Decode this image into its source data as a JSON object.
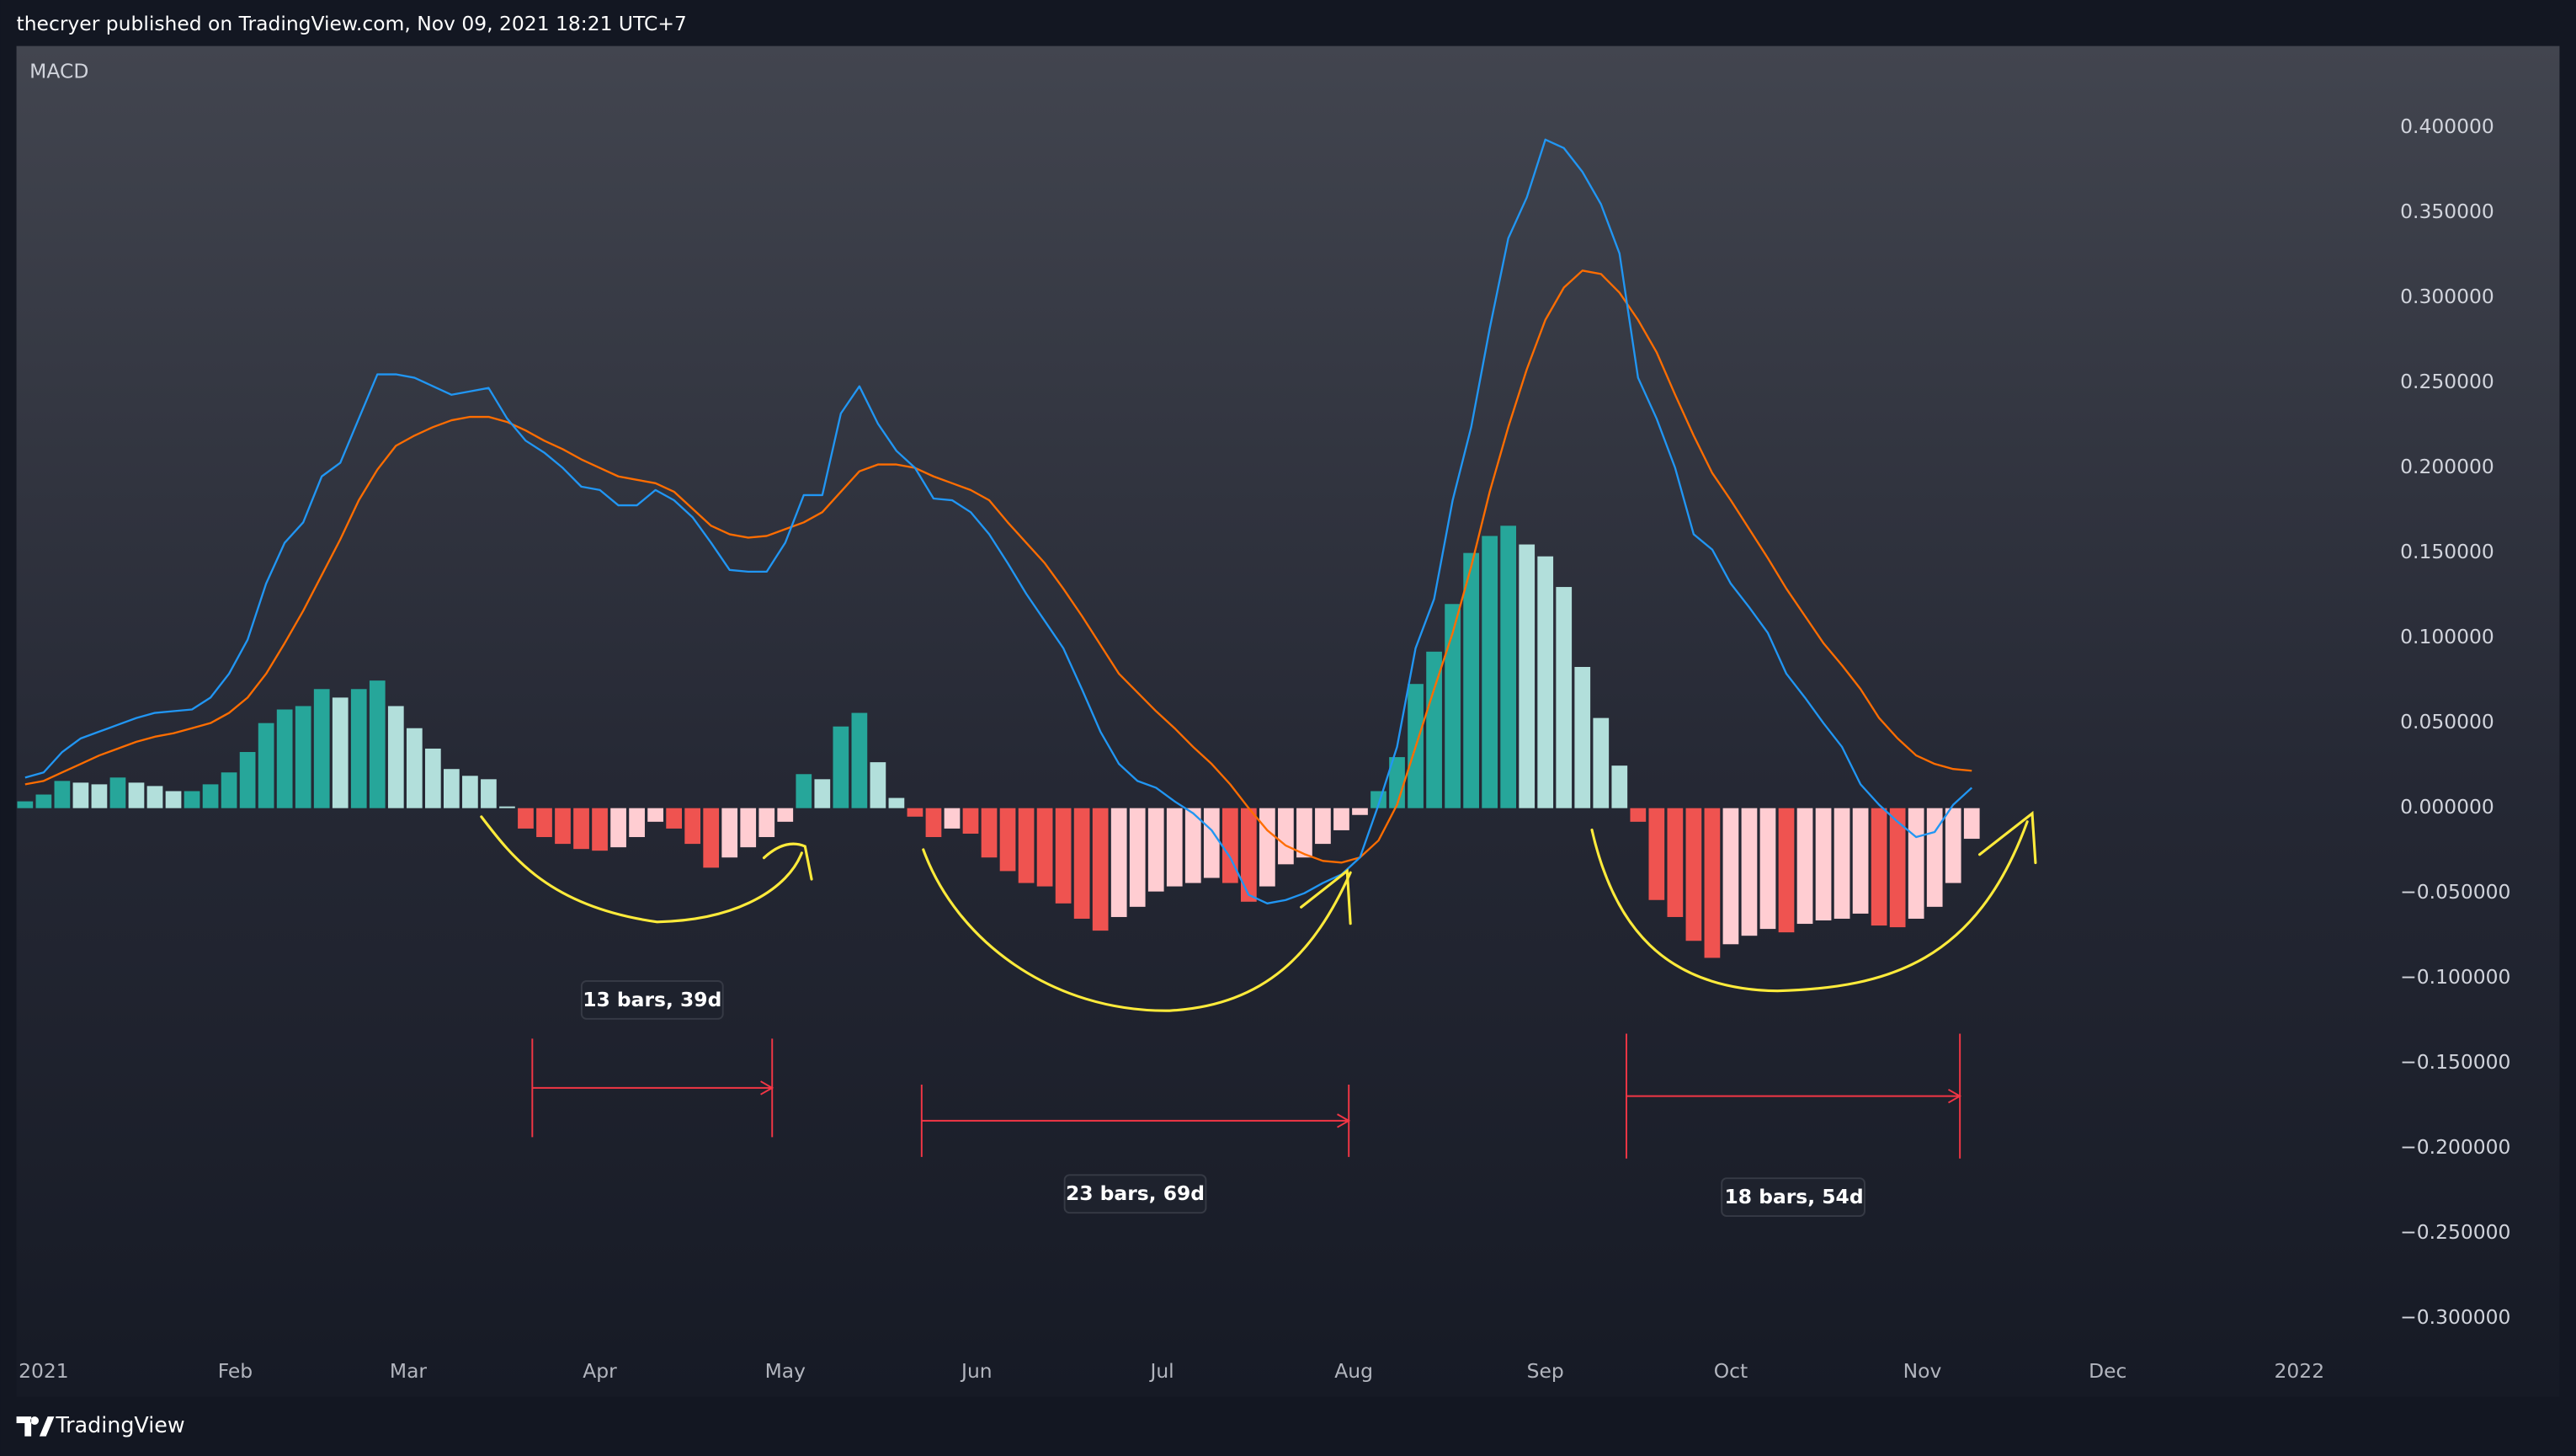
{
  "header": "thecryer published on TradingView.com, Nov 09, 2021 18:21 UTC+7",
  "footer": "TradingView",
  "chart_data": {
    "type": "macd",
    "title": "MACD",
    "annotations": [
      "13 bars, 39d",
      "23 bars, 69d",
      "18 bars, 54d"
    ],
    "x": [
      -3,
      0,
      3,
      6,
      9,
      12,
      15,
      18,
      21,
      24,
      27,
      30,
      33,
      36,
      39,
      42,
      45,
      48,
      51,
      54,
      57,
      60,
      63,
      66,
      69,
      72,
      75,
      78,
      81,
      84,
      87,
      90,
      93,
      96,
      99,
      102,
      105,
      108,
      111,
      114,
      117,
      120,
      123,
      126,
      129,
      132,
      135,
      138,
      141,
      144,
      147,
      150,
      153,
      156,
      159,
      162,
      165,
      168,
      171,
      174,
      177,
      180,
      183,
      186,
      189,
      192,
      195,
      198,
      201,
      204,
      207,
      210,
      213,
      216,
      219,
      222,
      225,
      228,
      231,
      234,
      237,
      240,
      243,
      246,
      249,
      252,
      255,
      258,
      261,
      264,
      267,
      270,
      273,
      276,
      279,
      282,
      285,
      288,
      291,
      294,
      297,
      300,
      303,
      306,
      309,
      312
    ],
    "histogram": {
      "colors": [
        "#26a69a",
        "#b2dfdb",
        "#ef5350",
        "#ffcdd2"
      ],
      "values": [
        0.004,
        0.008,
        0.016,
        0.015,
        0.014,
        0.018,
        0.015,
        0.013,
        0.01,
        0.01,
        0.014,
        0.021,
        0.033,
        0.05,
        0.058,
        0.06,
        0.07,
        0.065,
        0.07,
        0.075,
        0.06,
        0.047,
        0.035,
        0.023,
        0.019,
        0.017,
        0.001,
        -0.012,
        -0.017,
        -0.021,
        -0.024,
        -0.025,
        -0.023,
        -0.017,
        -0.008,
        -0.012,
        -0.021,
        -0.035,
        -0.029,
        -0.023,
        -0.017,
        -0.008,
        0.02,
        0.017,
        0.048,
        0.056,
        0.027,
        0.006,
        -0.005,
        -0.017,
        -0.012,
        -0.015,
        -0.029,
        -0.037,
        -0.044,
        -0.046,
        -0.056,
        -0.065,
        -0.072,
        -0.064,
        -0.058,
        -0.049,
        -0.046,
        -0.044,
        -0.041,
        -0.044,
        -0.055,
        -0.046,
        -0.033,
        -0.029,
        -0.021,
        -0.013,
        -0.004,
        0.01,
        0.03,
        0.073,
        0.092,
        0.12,
        0.15,
        0.16,
        0.166,
        0.155,
        0.148,
        0.13,
        0.083,
        0.053,
        0.025,
        -0.008,
        -0.054,
        -0.064,
        -0.078,
        -0.088,
        -0.08,
        -0.075,
        -0.071,
        -0.073,
        -0.068,
        -0.066,
        -0.065,
        -0.062,
        -0.069,
        -0.07,
        -0.065,
        -0.058,
        -0.044,
        -0.018
      ]
    },
    "macd": {
      "color": "#2196f3",
      "values": [
        0.018,
        0.021,
        0.033,
        0.041,
        0.045,
        0.049,
        0.053,
        0.056,
        0.057,
        0.058,
        0.065,
        0.079,
        0.099,
        0.132,
        0.156,
        0.168,
        0.195,
        0.203,
        0.229,
        0.255,
        0.255,
        0.253,
        0.248,
        0.243,
        0.245,
        0.247,
        0.229,
        0.216,
        0.209,
        0.2,
        0.189,
        0.187,
        0.178,
        0.178,
        0.187,
        0.181,
        0.171,
        0.156,
        0.14,
        0.139,
        0.139,
        0.156,
        0.184,
        0.184,
        0.232,
        0.248,
        0.226,
        0.21,
        0.2,
        0.182,
        0.181,
        0.174,
        0.161,
        0.144,
        0.126,
        0.11,
        0.094,
        0.07,
        0.045,
        0.026,
        0.016,
        0.012,
        0.004,
        -0.003,
        -0.013,
        -0.029,
        -0.051,
        -0.056,
        -0.054,
        -0.05,
        -0.044,
        -0.039,
        -0.029,
        0.002,
        0.036,
        0.094,
        0.123,
        0.181,
        0.224,
        0.282,
        0.335,
        0.359,
        0.393,
        0.388,
        0.374,
        0.355,
        0.326,
        0.253,
        0.229,
        0.2,
        0.161,
        0.152,
        0.132,
        0.118,
        0.103,
        0.079,
        0.065,
        0.05,
        0.036,
        0.014,
        0.002,
        -0.008,
        -0.017,
        -0.014,
        0.002,
        0.012
      ]
    },
    "signal": {
      "color": "#ff6d00",
      "values": [
        0.014,
        0.016,
        0.021,
        0.026,
        0.031,
        0.035,
        0.039,
        0.042,
        0.044,
        0.047,
        0.05,
        0.056,
        0.065,
        0.079,
        0.097,
        0.116,
        0.137,
        0.158,
        0.181,
        0.199,
        0.213,
        0.219,
        0.224,
        0.228,
        0.23,
        0.23,
        0.227,
        0.222,
        0.216,
        0.211,
        0.205,
        0.2,
        0.195,
        0.193,
        0.191,
        0.186,
        0.176,
        0.166,
        0.161,
        0.159,
        0.16,
        0.164,
        0.168,
        0.174,
        0.186,
        0.198,
        0.202,
        0.202,
        0.2,
        0.195,
        0.191,
        0.187,
        0.181,
        0.168,
        0.156,
        0.144,
        0.129,
        0.113,
        0.096,
        0.079,
        0.068,
        0.057,
        0.047,
        0.036,
        0.026,
        0.014,
        0.0,
        -0.013,
        -0.022,
        -0.027,
        -0.031,
        -0.032,
        -0.029,
        -0.019,
        0.002,
        0.036,
        0.07,
        0.103,
        0.142,
        0.186,
        0.224,
        0.258,
        0.287,
        0.306,
        0.316,
        0.314,
        0.303,
        0.287,
        0.268,
        0.243,
        0.219,
        0.197,
        0.181,
        0.164,
        0.147,
        0.129,
        0.113,
        0.097,
        0.084,
        0.07,
        0.053,
        0.041,
        0.031,
        0.026,
        0.023,
        0.022
      ]
    },
    "xlim": [
      -4.4,
      378.4
    ],
    "xticks": [
      {
        "value": 0,
        "label": "2021"
      },
      {
        "value": 31,
        "label": "Feb"
      },
      {
        "value": 59,
        "label": "Mar"
      },
      {
        "value": 90,
        "label": "Apr"
      },
      {
        "value": 120,
        "label": "May"
      },
      {
        "value": 151,
        "label": "Jun"
      },
      {
        "value": 181,
        "label": "Jul"
      },
      {
        "value": 212,
        "label": "Aug"
      },
      {
        "value": 243,
        "label": "Sep"
      },
      {
        "value": 273,
        "label": "Oct"
      },
      {
        "value": 304,
        "label": "Nov"
      },
      {
        "value": 334,
        "label": "Dec"
      },
      {
        "value": 365,
        "label": "2022"
      }
    ],
    "ylim": [
      -0.319,
      0.448
    ],
    "yticks": [
      {
        "value": 0.4,
        "label": "0.400000"
      },
      {
        "value": 0.35,
        "label": "0.350000"
      },
      {
        "value": 0.3,
        "label": "0.300000"
      },
      {
        "value": 0.25,
        "label": "0.250000"
      },
      {
        "value": 0.2,
        "label": "0.200000"
      },
      {
        "value": 0.15,
        "label": "0.150000"
      },
      {
        "value": 0.1,
        "label": "0.100000"
      },
      {
        "value": 0.05,
        "label": "0.050000"
      },
      {
        "value": 0,
        "label": "0.000000"
      },
      {
        "value": -0.05,
        "label": "−0.050000"
      },
      {
        "value": -0.1,
        "label": "−0.100000"
      },
      {
        "value": -0.15,
        "label": "−0.150000"
      },
      {
        "value": -0.2,
        "label": "−0.200000"
      },
      {
        "value": -0.25,
        "label": "−0.250000"
      },
      {
        "value": -0.3,
        "label": "−0.300000"
      }
    ],
    "grid": false
  }
}
